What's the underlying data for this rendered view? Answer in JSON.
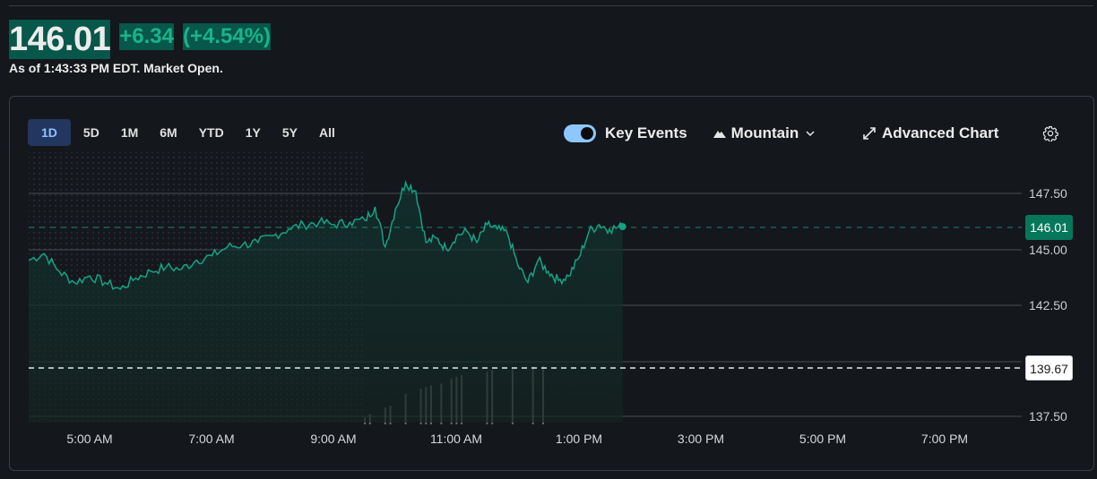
{
  "quote": {
    "price": "146.01",
    "change": "+6.34",
    "change_pct": "(+4.54%)",
    "as_of": "As of 1:43:33 PM EDT. Market Open."
  },
  "ranges": [
    {
      "label": "1D",
      "active": true
    },
    {
      "label": "5D"
    },
    {
      "label": "1M"
    },
    {
      "label": "6M"
    },
    {
      "label": "YTD"
    },
    {
      "label": "1Y"
    },
    {
      "label": "5Y"
    },
    {
      "label": "All"
    }
  ],
  "controls": {
    "key_events_label": "Key Events",
    "key_events_on": true,
    "chart_type_label": "Mountain",
    "advanced_chart_label": "Advanced Chart",
    "icons": {
      "chart_type": "mountain-icon",
      "dropdown": "chevron-down-icon",
      "advanced": "expand-arrows-icon",
      "settings": "gear-icon"
    }
  },
  "colors": {
    "up": "#19b48a",
    "price_bg": "#07574a",
    "line": "#14a383",
    "active_range_bg": "#23365f",
    "active_range_text": "#8cc2ff",
    "toggle": "#8cc8ff"
  },
  "axis": {
    "y_labels": [
      "147.50",
      "145.00",
      "142.50",
      "137.50"
    ],
    "current_tag": "146.01",
    "prev_close_tag": "139.67",
    "x_labels": [
      "5:00 AM",
      "7:00 AM",
      "9:00 AM",
      "11:00 AM",
      "1:00 PM",
      "3:00 PM",
      "5:00 PM",
      "7:00 PM"
    ]
  },
  "chart_data": {
    "type": "area",
    "title": "",
    "xlabel": "",
    "ylabel": "",
    "ylim": [
      137.0,
      149.0
    ],
    "grid": true,
    "legend": "none",
    "x_range": [
      "4:00 AM",
      "8:00 PM"
    ],
    "current_price": 146.01,
    "previous_close": 139.67,
    "premarket_shaded": [
      "4:00 AM",
      "9:30 AM"
    ],
    "series": [
      {
        "name": "Price",
        "x": [
          "4:00 AM",
          "4:15 AM",
          "4:30 AM",
          "4:45 AM",
          "5:00 AM",
          "5:15 AM",
          "5:30 AM",
          "5:45 AM",
          "6:00 AM",
          "6:15 AM",
          "6:30 AM",
          "6:45 AM",
          "7:00 AM",
          "7:15 AM",
          "7:30 AM",
          "7:45 AM",
          "8:00 AM",
          "8:15 AM",
          "8:30 AM",
          "8:45 AM",
          "9:00 AM",
          "9:15 AM",
          "9:30 AM",
          "9:40 AM",
          "9:50 AM",
          "10:00 AM",
          "10:10 AM",
          "10:20 AM",
          "10:30 AM",
          "10:40 AM",
          "10:50 AM",
          "11:00 AM",
          "11:10 AM",
          "11:20 AM",
          "11:30 AM",
          "11:40 AM",
          "11:50 AM",
          "12:00 PM",
          "12:10 PM",
          "12:20 PM",
          "12:30 PM",
          "12:40 PM",
          "12:50 PM",
          "1:00 PM",
          "1:10 PM",
          "1:20 PM",
          "1:30 PM",
          "1:43 PM"
        ],
        "values": [
          144.5,
          144.8,
          144.0,
          143.5,
          143.8,
          143.5,
          143.2,
          143.7,
          144.0,
          144.2,
          144.1,
          144.5,
          144.7,
          145.1,
          145.2,
          145.3,
          145.6,
          145.9,
          146.1,
          146.2,
          146.1,
          146.2,
          146.3,
          146.9,
          145.1,
          146.8,
          148.0,
          147.6,
          145.3,
          145.5,
          145.0,
          145.6,
          145.8,
          145.3,
          146.1,
          145.9,
          145.7,
          144.3,
          143.5,
          144.5,
          144.0,
          143.6,
          143.8,
          144.6,
          145.8,
          146.1,
          145.9,
          146.01
        ]
      },
      {
        "name": "Volume",
        "x": [
          "9:30 AM",
          "9:35 AM",
          "9:50 AM",
          "9:55 AM",
          "10:10 AM",
          "10:25 AM",
          "10:30 AM",
          "10:35 AM",
          "10:45 AM",
          "10:55 AM",
          "11:00 AM",
          "11:05 AM",
          "11:30 AM",
          "11:35 AM",
          "11:55 AM",
          "12:15 PM",
          "12:25 PM"
        ],
        "values": [
          0.2,
          0.3,
          0.5,
          0.55,
          0.9,
          1.05,
          1.1,
          1.15,
          1.2,
          1.35,
          1.4,
          1.45,
          1.55,
          1.6,
          1.62,
          1.7,
          1.72
        ]
      }
    ]
  }
}
